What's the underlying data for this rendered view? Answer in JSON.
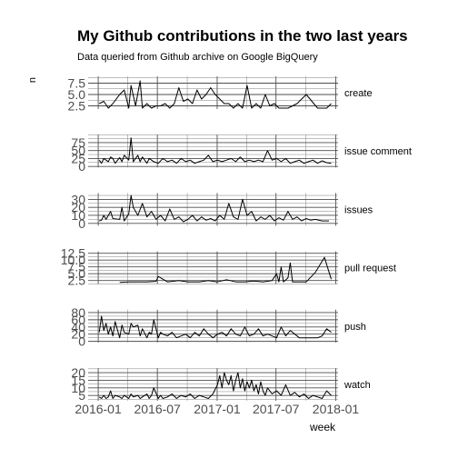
{
  "chart_data": {
    "type": "line",
    "title": "My Github contributions in the two last years",
    "subtitle": "Data queried from Github archive on Google BigQuery",
    "xlabel": "week",
    "ylabel": "n",
    "x_ticks": [
      "2016-01",
      "2016-07",
      "2017-01",
      "2017-07",
      "2018-01"
    ],
    "x_range": [
      "2015-12-01",
      "2018-01-08"
    ],
    "facets": [
      {
        "name": "create",
        "ylim": [
          1.8,
          9.0
        ],
        "y_ticks": [
          "2.5",
          "5.0",
          "7.5"
        ],
        "x": [
          "2016-01-04",
          "2016-01-18",
          "2016-02-01",
          "2016-02-15",
          "2016-03-07",
          "2016-03-21",
          "2016-04-04",
          "2016-04-11",
          "2016-04-25",
          "2016-05-09",
          "2016-05-16",
          "2016-05-30",
          "2016-06-13",
          "2016-06-27",
          "2016-07-11",
          "2016-07-25",
          "2016-08-08",
          "2016-08-22",
          "2016-09-05",
          "2016-09-19",
          "2016-10-03",
          "2016-10-17",
          "2016-10-31",
          "2016-11-14",
          "2016-11-28",
          "2016-12-12",
          "2016-12-26",
          "2017-01-09",
          "2017-01-23",
          "2017-02-06",
          "2017-02-20",
          "2017-03-06",
          "2017-03-20",
          "2017-04-03",
          "2017-04-17",
          "2017-05-01",
          "2017-05-15",
          "2017-05-29",
          "2017-06-12",
          "2017-06-26",
          "2017-07-10",
          "2017-08-07",
          "2017-09-04",
          "2017-10-02",
          "2017-11-06",
          "2017-12-04",
          "2017-12-18"
        ],
        "y": [
          3,
          3.5,
          2,
          3,
          5,
          6,
          2,
          7,
          2.5,
          8,
          2,
          3,
          2,
          2.5,
          2.5,
          3,
          2,
          3,
          6.5,
          3.5,
          4,
          3,
          6,
          4,
          5,
          6.5,
          5,
          4,
          3,
          3,
          2,
          3,
          2,
          7,
          2,
          3,
          2,
          5,
          2.5,
          3,
          2,
          2,
          3,
          5,
          2,
          2,
          3
        ]
      },
      {
        "name": "issue comment",
        "ylim": [
          -3,
          100
        ],
        "y_ticks": [
          "0",
          "25",
          "50",
          "75"
        ],
        "x": [
          "2016-01-04",
          "2016-01-11",
          "2016-01-18",
          "2016-01-25",
          "2016-02-01",
          "2016-02-08",
          "2016-02-15",
          "2016-02-22",
          "2016-03-07",
          "2016-03-14",
          "2016-03-21",
          "2016-04-04",
          "2016-04-11",
          "2016-04-18",
          "2016-05-02",
          "2016-05-09",
          "2016-05-16",
          "2016-05-30",
          "2016-06-06",
          "2016-06-13",
          "2016-06-20",
          "2016-07-04",
          "2016-07-18",
          "2016-08-01",
          "2016-08-15",
          "2016-08-29",
          "2016-09-12",
          "2016-09-26",
          "2016-10-10",
          "2016-10-24",
          "2016-11-07",
          "2016-11-21",
          "2016-12-05",
          "2016-12-19",
          "2017-01-02",
          "2017-01-16",
          "2017-01-30",
          "2017-02-13",
          "2017-02-27",
          "2017-03-13",
          "2017-03-27",
          "2017-04-10",
          "2017-04-24",
          "2017-05-08",
          "2017-05-22",
          "2017-06-05",
          "2017-06-19",
          "2017-07-03",
          "2017-07-17",
          "2017-07-31",
          "2017-08-14",
          "2017-08-28",
          "2017-09-11",
          "2017-09-25",
          "2017-10-09",
          "2017-10-23",
          "2017-11-06",
          "2017-11-20",
          "2017-12-04",
          "2017-12-18"
        ],
        "y": [
          20,
          10,
          25,
          20,
          15,
          30,
          25,
          10,
          28,
          15,
          35,
          20,
          90,
          15,
          35,
          15,
          30,
          10,
          25,
          20,
          15,
          10,
          25,
          15,
          20,
          10,
          25,
          15,
          20,
          10,
          15,
          20,
          35,
          15,
          20,
          15,
          20,
          25,
          15,
          30,
          15,
          20,
          15,
          20,
          15,
          50,
          20,
          25,
          15,
          25,
          10,
          15,
          20,
          10,
          15,
          20,
          10,
          18,
          12,
          10
        ]
      },
      {
        "name": "issues",
        "ylim": [
          -3,
          38
        ],
        "y_ticks": [
          "0",
          "10",
          "20",
          "30"
        ],
        "x": [
          "2016-01-04",
          "2016-01-11",
          "2016-01-18",
          "2016-01-25",
          "2016-02-08",
          "2016-02-15",
          "2016-03-07",
          "2016-03-14",
          "2016-03-21",
          "2016-04-04",
          "2016-04-11",
          "2016-04-18",
          "2016-05-02",
          "2016-05-16",
          "2016-05-30",
          "2016-06-13",
          "2016-06-27",
          "2016-07-11",
          "2016-07-25",
          "2016-08-08",
          "2016-08-22",
          "2016-09-05",
          "2016-09-19",
          "2016-10-03",
          "2016-10-17",
          "2016-10-31",
          "2016-11-14",
          "2016-11-28",
          "2016-12-12",
          "2016-12-26",
          "2017-01-09",
          "2017-01-23",
          "2017-02-06",
          "2017-02-20",
          "2017-03-06",
          "2017-03-20",
          "2017-04-03",
          "2017-04-17",
          "2017-05-01",
          "2017-05-15",
          "2017-05-29",
          "2017-06-12",
          "2017-06-26",
          "2017-07-10",
          "2017-07-24",
          "2017-08-07",
          "2017-08-21",
          "2017-09-04",
          "2017-09-18",
          "2017-10-02",
          "2017-10-16",
          "2017-10-30",
          "2017-11-20",
          "2017-12-11"
        ],
        "y": [
          3,
          4,
          10,
          5,
          15,
          6,
          5,
          20,
          3,
          12,
          35,
          20,
          10,
          25,
          8,
          15,
          5,
          10,
          3,
          18,
          5,
          8,
          2,
          5,
          10,
          3,
          8,
          4,
          6,
          3,
          10,
          5,
          25,
          8,
          5,
          30,
          10,
          15,
          3,
          8,
          5,
          10,
          3,
          7,
          4,
          15,
          5,
          8,
          3,
          6,
          4,
          5,
          3,
          3
        ]
      },
      {
        "name": "pull request",
        "ylim": [
          1.2,
          13.2
        ],
        "y_ticks": [
          "2.5",
          "5.0",
          "7.5",
          "10.0",
          "12.5"
        ],
        "x": [
          "2016-03-07",
          "2016-04-04",
          "2016-05-02",
          "2016-05-30",
          "2016-06-27",
          "2016-07-04",
          "2016-08-01",
          "2016-09-05",
          "2016-10-03",
          "2016-11-07",
          "2016-12-05",
          "2017-01-02",
          "2017-01-30",
          "2017-02-27",
          "2017-03-27",
          "2017-04-24",
          "2017-05-22",
          "2017-06-19",
          "2017-07-03",
          "2017-07-10",
          "2017-07-17",
          "2017-07-24",
          "2017-08-07",
          "2017-08-14",
          "2017-08-21",
          "2017-09-04",
          "2017-10-02",
          "2017-10-30",
          "2017-11-27",
          "2017-12-18"
        ],
        "y": [
          1.8,
          2,
          2,
          2,
          2.2,
          4,
          2,
          2.5,
          2,
          2,
          2.5,
          2,
          2.8,
          2,
          2,
          2.3,
          2,
          2.5,
          5,
          2,
          7.5,
          2,
          3.5,
          9,
          2,
          2,
          2,
          5.5,
          11,
          3
        ]
      },
      {
        "name": "push",
        "ylim": [
          -3,
          88
        ],
        "y_ticks": [
          "0",
          "20",
          "40",
          "60",
          "80"
        ],
        "x": [
          "2016-01-04",
          "2016-01-11",
          "2016-01-18",
          "2016-01-25",
          "2016-02-01",
          "2016-02-08",
          "2016-02-15",
          "2016-02-22",
          "2016-03-07",
          "2016-03-14",
          "2016-03-21",
          "2016-04-04",
          "2016-04-11",
          "2016-04-18",
          "2016-05-02",
          "2016-05-09",
          "2016-05-16",
          "2016-05-30",
          "2016-06-06",
          "2016-06-13",
          "2016-06-20",
          "2016-07-04",
          "2016-07-11",
          "2016-07-18",
          "2016-08-01",
          "2016-08-15",
          "2016-08-29",
          "2016-09-12",
          "2016-09-26",
          "2016-10-10",
          "2016-10-24",
          "2016-11-07",
          "2016-11-21",
          "2016-12-05",
          "2016-12-19",
          "2017-01-02",
          "2017-01-16",
          "2017-01-30",
          "2017-02-13",
          "2017-02-27",
          "2017-03-13",
          "2017-03-27",
          "2017-04-10",
          "2017-04-24",
          "2017-05-08",
          "2017-05-22",
          "2017-06-05",
          "2017-06-19",
          "2017-07-03",
          "2017-07-17",
          "2017-07-31",
          "2017-08-14",
          "2017-08-28",
          "2017-09-11",
          "2017-10-09",
          "2017-11-06",
          "2017-11-20",
          "2017-12-04",
          "2017-12-18"
        ],
        "y": [
          25,
          70,
          30,
          50,
          20,
          40,
          15,
          55,
          10,
          45,
          25,
          20,
          50,
          40,
          45,
          15,
          35,
          10,
          25,
          20,
          60,
          10,
          25,
          20,
          15,
          25,
          10,
          15,
          20,
          10,
          25,
          15,
          35,
          20,
          10,
          20,
          25,
          15,
          35,
          20,
          15,
          40,
          15,
          20,
          35,
          15,
          20,
          15,
          10,
          40,
          15,
          30,
          20,
          10,
          10,
          10,
          15,
          35,
          25
        ]
      },
      {
        "name": "watch",
        "ylim": [
          1.5,
          23
        ],
        "y_ticks": [
          "5",
          "10",
          "15",
          "20"
        ],
        "x": [
          "2016-01-04",
          "2016-01-11",
          "2016-01-18",
          "2016-01-25",
          "2016-02-01",
          "2016-02-08",
          "2016-02-15",
          "2016-02-22",
          "2016-03-07",
          "2016-03-14",
          "2016-03-21",
          "2016-04-04",
          "2016-04-11",
          "2016-04-18",
          "2016-05-02",
          "2016-05-09",
          "2016-05-16",
          "2016-05-30",
          "2016-06-06",
          "2016-06-13",
          "2016-06-20",
          "2016-07-04",
          "2016-07-11",
          "2016-07-18",
          "2016-08-01",
          "2016-08-15",
          "2016-08-29",
          "2016-09-12",
          "2016-09-26",
          "2016-10-10",
          "2016-10-24",
          "2016-11-07",
          "2016-11-21",
          "2016-12-05",
          "2016-12-19",
          "2017-01-02",
          "2017-01-09",
          "2017-01-16",
          "2017-01-23",
          "2017-01-30",
          "2017-02-06",
          "2017-02-13",
          "2017-02-20",
          "2017-02-27",
          "2017-03-06",
          "2017-03-13",
          "2017-03-20",
          "2017-03-27",
          "2017-04-03",
          "2017-04-10",
          "2017-04-17",
          "2017-04-24",
          "2017-05-01",
          "2017-05-08",
          "2017-05-15",
          "2017-05-22",
          "2017-05-29",
          "2017-06-05",
          "2017-06-19",
          "2017-07-03",
          "2017-07-17",
          "2017-07-31",
          "2017-08-14",
          "2017-08-28",
          "2017-09-11",
          "2017-09-25",
          "2017-10-09",
          "2017-10-23",
          "2017-11-06",
          "2017-11-20",
          "2017-12-04",
          "2017-12-18"
        ],
        "y": [
          4,
          3,
          5,
          3,
          4,
          8,
          3,
          5,
          4,
          3,
          5,
          3,
          6,
          4,
          5,
          3,
          4,
          6,
          3,
          5,
          10,
          3,
          5,
          3,
          4,
          6,
          3,
          5,
          4,
          6,
          3,
          5,
          4,
          3,
          6,
          12,
          18,
          10,
          20,
          15,
          12,
          18,
          8,
          15,
          20,
          10,
          16,
          8,
          14,
          10,
          15,
          8,
          12,
          6,
          14,
          8,
          5,
          10,
          6,
          8,
          5,
          12,
          5,
          7,
          4,
          6,
          3,
          5,
          4,
          3,
          8,
          5
        ]
      }
    ]
  }
}
